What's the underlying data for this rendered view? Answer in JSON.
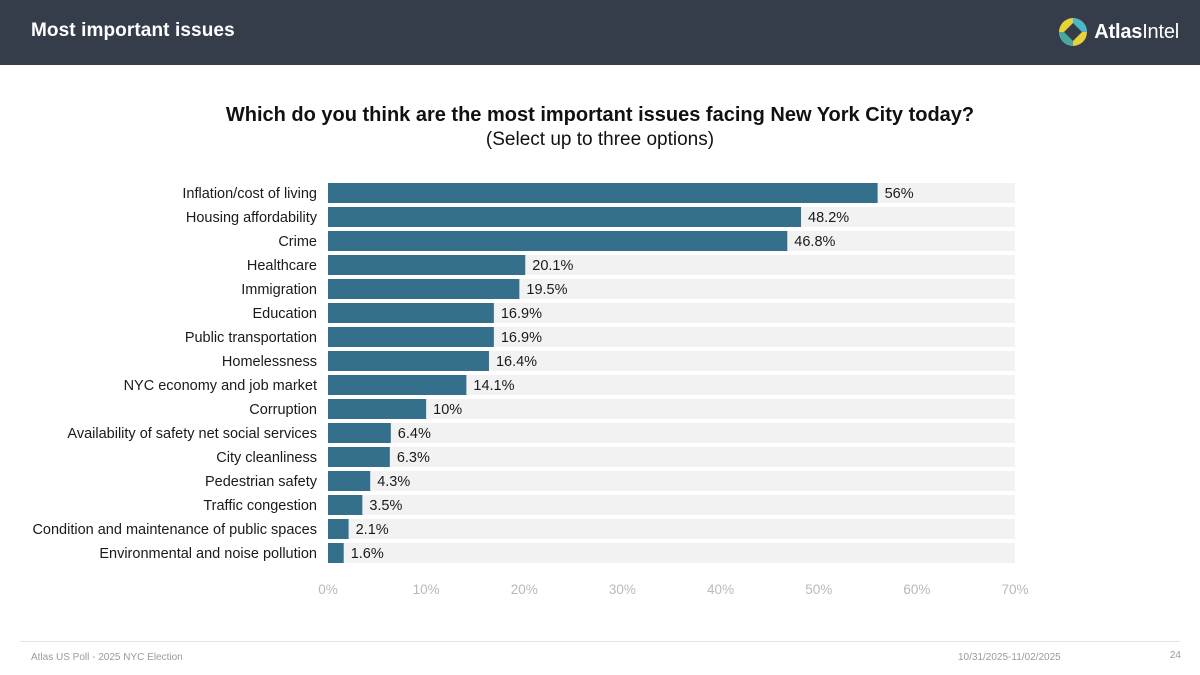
{
  "header": {
    "title": "Most important issues",
    "logo_text_bold": "Atlas",
    "logo_text_light": "Intel",
    "header_color": "#353d4b"
  },
  "chart_data": {
    "type": "bar",
    "orientation": "horizontal",
    "title": "Which do you think are the most important issues facing New York City today?",
    "subtitle": "(Select up to three options)",
    "xlabel": "",
    "ylabel": "",
    "xlim": [
      0,
      70
    ],
    "x_ticks": [
      0,
      10,
      20,
      30,
      40,
      50,
      60,
      70
    ],
    "x_tick_labels": [
      "0%",
      "10%",
      "20%",
      "30%",
      "40%",
      "50%",
      "60%",
      "70%"
    ],
    "bar_color": "#346f8c",
    "track_color": "#f2f2f2",
    "categories": [
      "Inflation/cost of living",
      "Housing affordability",
      "Crime",
      "Healthcare",
      "Immigration",
      "Education",
      "Public transportation",
      "Homelessness",
      "NYC economy and job market",
      "Corruption",
      "Availability of safety net social services",
      "City cleanliness",
      "Pedestrian safety",
      "Traffic congestion",
      "Condition and maintenance of public spaces",
      "Environmental and noise pollution"
    ],
    "values": [
      56,
      48.2,
      46.8,
      20.1,
      19.5,
      16.9,
      16.9,
      16.4,
      14.1,
      10,
      6.4,
      6.3,
      4.3,
      3.5,
      2.1,
      1.6
    ],
    "value_labels": [
      "56%",
      "48.2%",
      "46.8%",
      "20.1%",
      "19.5%",
      "16.9%",
      "16.9%",
      "16.4%",
      "14.1%",
      "10%",
      "6.4%",
      "6.3%",
      "4.3%",
      "3.5%",
      "2.1%",
      "1.6%"
    ]
  },
  "footer": {
    "source": "Atlas US Poll - 2025 NYC Election",
    "date_range": "10/31/2025-11/02/2025",
    "page_number": "24"
  }
}
